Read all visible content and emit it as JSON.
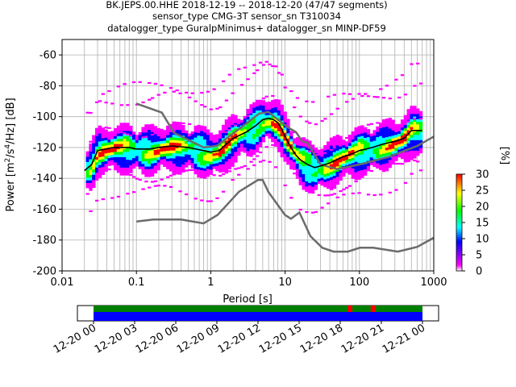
{
  "title_lines": [
    "BK.JEPS.00.HHE   2018-12-19 -- 2018-12-20  (47/47 segments)",
    "sensor_type CMG-3T sensor_sn T310034",
    "datalogger_type GuralpMinimus+ datalogger_sn MINP-DF59"
  ],
  "chart_data": {
    "type": "heatmap",
    "title": "BK.JEPS.00.HHE   2018-12-19 -- 2018-12-20  (47/47 segments)",
    "xlabel": "Period [s]",
    "ylabel": "Power [m²/s⁴/Hz] [dB]",
    "x_scale": "log",
    "xlim": [
      0.01,
      1000
    ],
    "ylim": [
      -200,
      -50
    ],
    "x_tick_labels": [
      "0.01",
      "0.1",
      "1",
      "10",
      "100",
      "1000"
    ],
    "x_tick_values": [
      0.01,
      0.1,
      1,
      10,
      100,
      1000
    ],
    "y_ticks": [
      -200,
      -180,
      -160,
      -140,
      -120,
      -100,
      -80,
      -60
    ],
    "grid": true,
    "colorbar": {
      "label": "[%]",
      "range": [
        0,
        30
      ],
      "ticks": [
        0,
        5,
        10,
        15,
        20,
        25,
        30
      ],
      "colormap": [
        "#ffffff",
        "#ff00ff",
        "#0000ff",
        "#00ffff",
        "#00ff00",
        "#ffff00",
        "#ff0000"
      ]
    },
    "series": [
      {
        "name": "NHNM",
        "color": "#6b6b6b",
        "x": [
          0.1,
          0.22,
          0.32,
          0.8,
          1.2,
          2.4,
          4.5,
          6.0,
          8.0,
          11,
          14,
          17,
          20,
          30,
          50,
          100,
          250,
          600,
          1000
        ],
        "y": [
          -91.5,
          -97.4,
          -110.5,
          -120,
          -119,
          -108,
          -98,
          -97,
          -102,
          -107,
          -110,
          -116,
          -117,
          -131,
          -134,
          -131,
          -126,
          -119,
          -113
        ]
      },
      {
        "name": "NLNM",
        "color": "#6b6b6b",
        "x": [
          0.1,
          0.17,
          0.4,
          0.8,
          1.24,
          2.4,
          4.3,
          5.0,
          6.0,
          10,
          12,
          15.6,
          21.9,
          31.6,
          45,
          70,
          101,
          154,
          328,
          600,
          1000
        ],
        "y": [
          -168,
          -166.7,
          -166.7,
          -169.2,
          -163.7,
          -148.6,
          -141.1,
          -141.1,
          -149,
          -163.8,
          -166.2,
          -162.1,
          -177.5,
          -185,
          -187.5,
          -187.5,
          -185,
          -185,
          -187.5,
          -184.4,
          -178.5
        ]
      },
      {
        "name": "mode",
        "color": "#000000",
        "x": [
          0.02,
          0.025,
          0.03,
          0.05,
          0.08,
          0.1,
          0.15,
          0.2,
          0.3,
          0.5,
          0.8,
          1.0,
          1.3,
          1.6,
          2.0,
          3.0,
          4.0,
          5.0,
          6.0,
          7.0,
          8.0,
          9.0,
          10,
          12,
          14,
          16,
          20,
          25,
          30,
          40,
          60,
          80,
          100,
          150,
          200,
          300,
          400,
          500,
          700
        ],
        "y": [
          -135,
          -131,
          -122,
          -120,
          -120,
          -121,
          -121,
          -120,
          -119,
          -120,
          -122,
          -123,
          -122,
          -118,
          -114,
          -110,
          -106,
          -102,
          -101,
          -102,
          -104,
          -108,
          -113,
          -120,
          -125,
          -128,
          -131,
          -133,
          -132,
          -130,
          -126,
          -124,
          -122,
          -120,
          -118,
          -116,
          -114,
          -109,
          -109
        ]
      }
    ],
    "availability_bar": {
      "time_ticks": [
        "12-20 00",
        "12-20 03",
        "12-20 06",
        "12-20 09",
        "12-20 12",
        "12-20 15",
        "12-20 18",
        "12-20 21",
        "12-21 00"
      ],
      "data_color": "#0000ff",
      "used_color": "#008000",
      "gap_color": "#ff0000",
      "gap_times_h": [
        18.7,
        20.4
      ]
    }
  }
}
